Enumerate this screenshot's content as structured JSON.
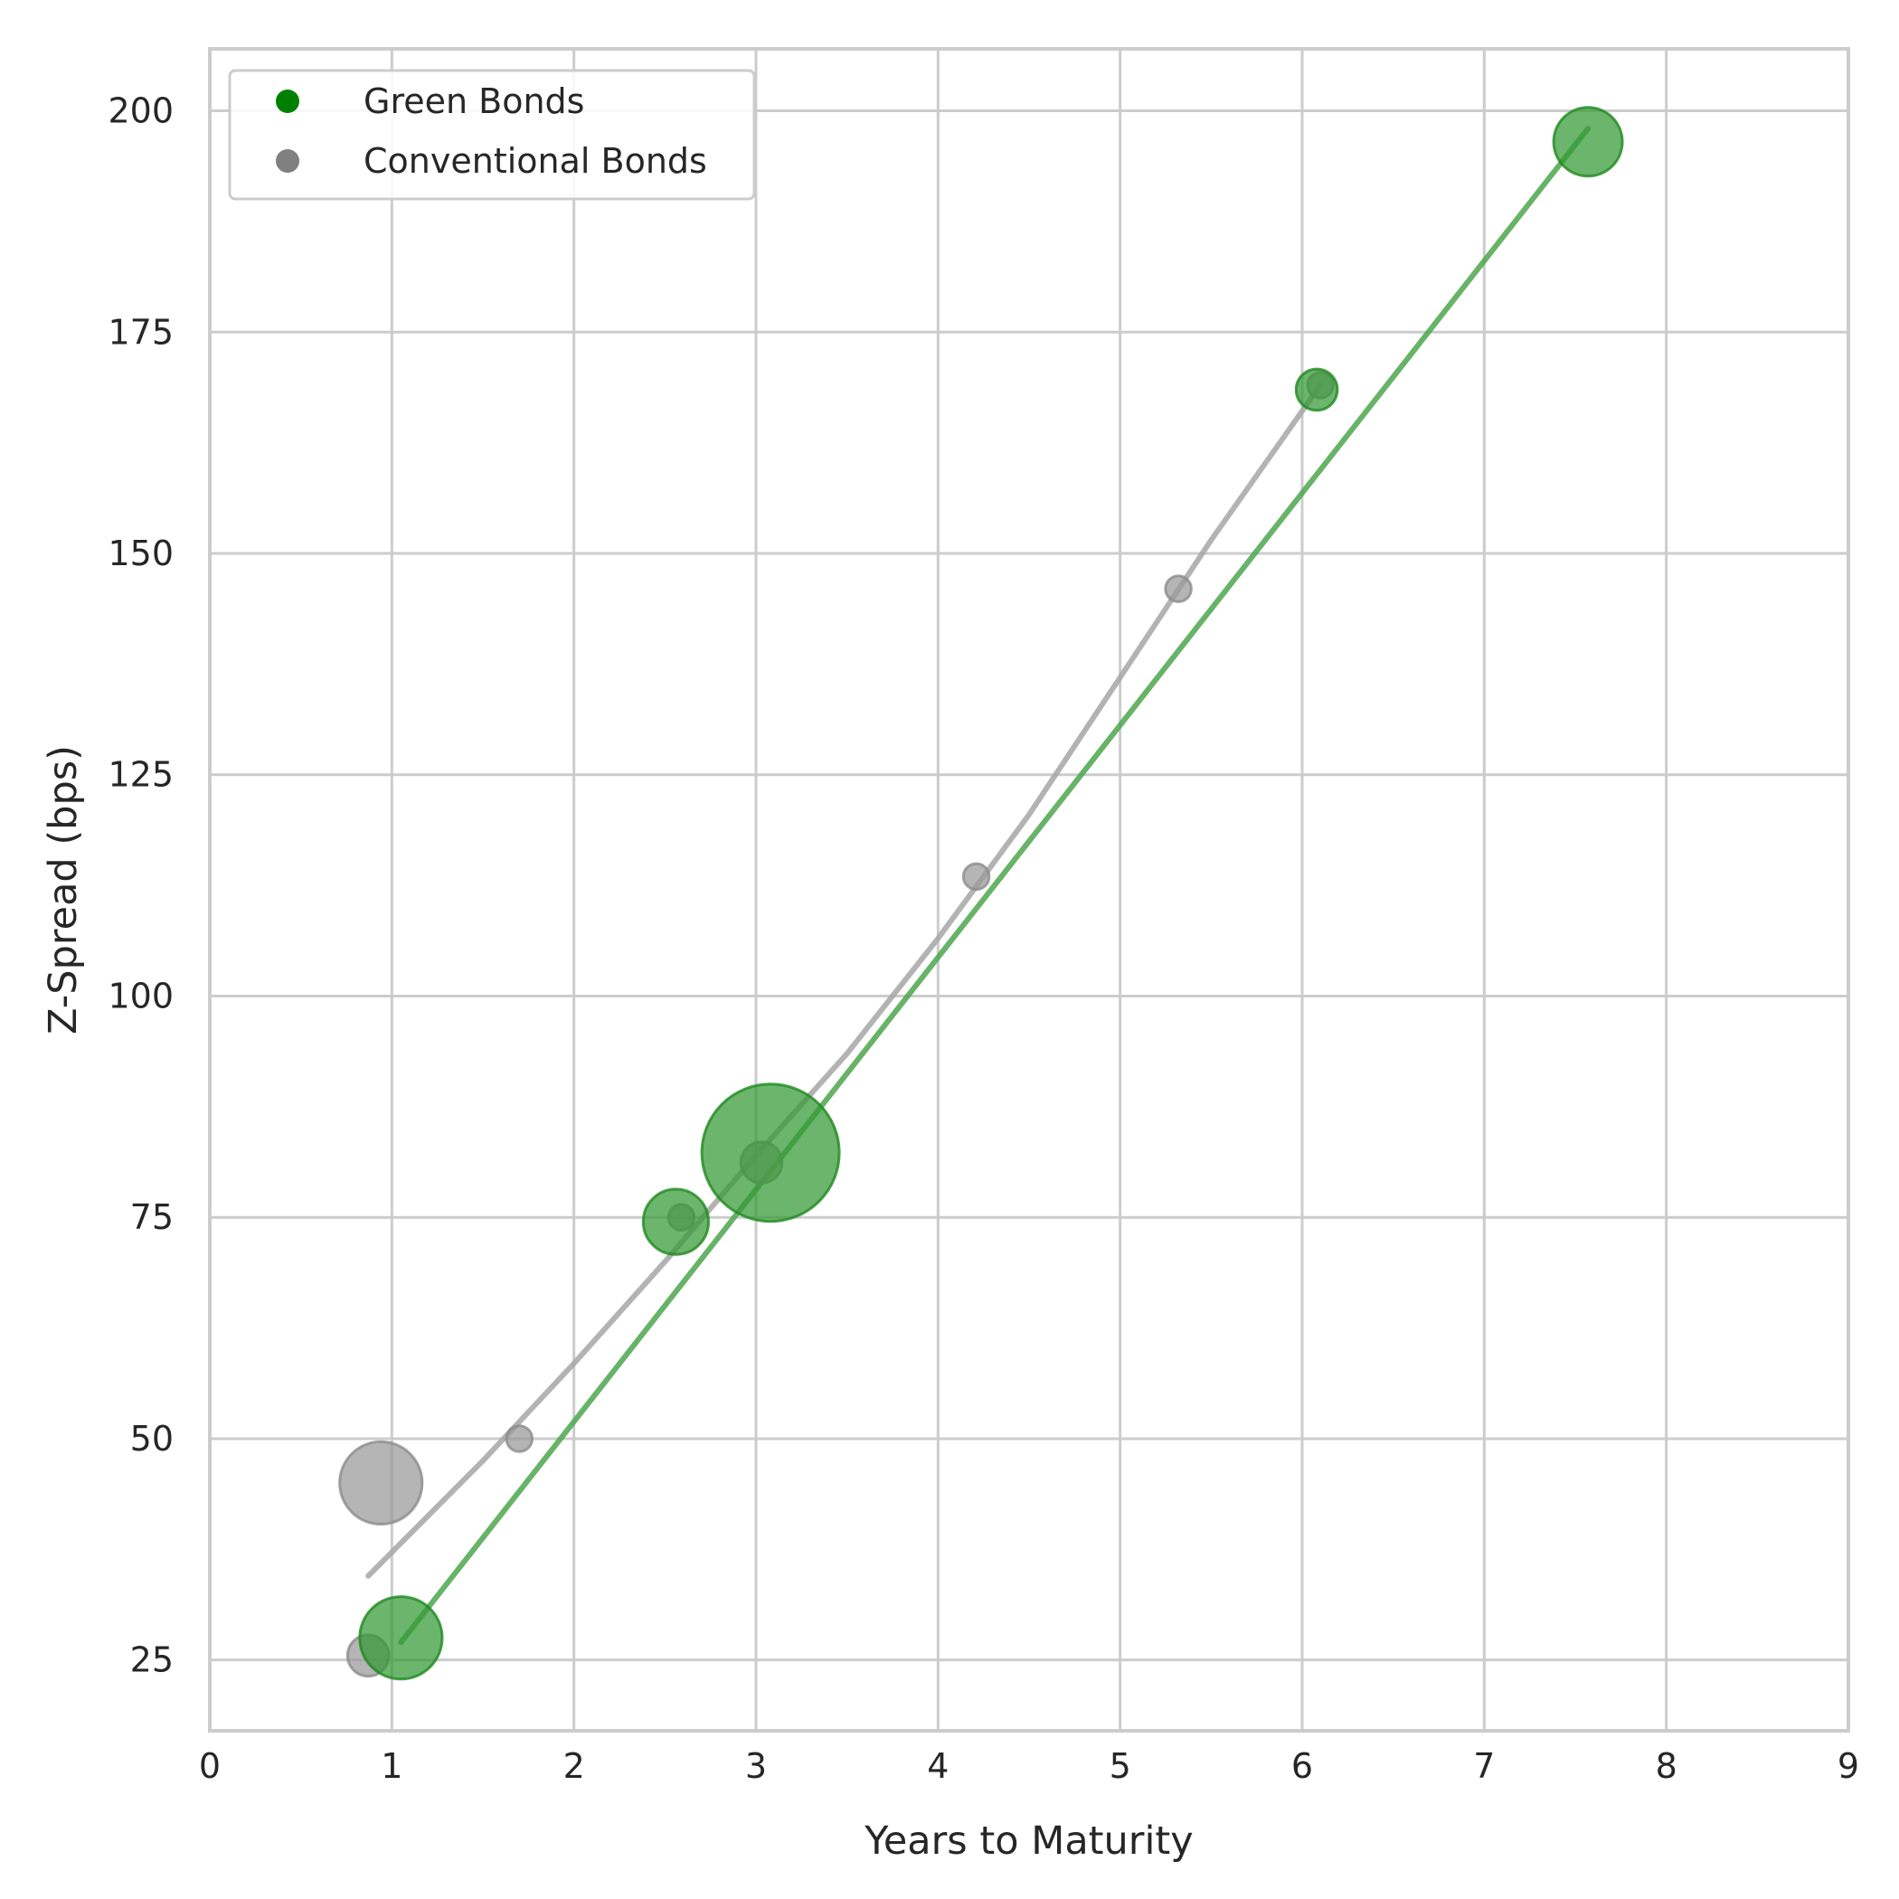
{
  "chart_data": {
    "type": "scatter",
    "xlabel": "Years to Maturity",
    "ylabel": "Z-Spread (bps)",
    "xlim": [
      0,
      9
    ],
    "ylim": [
      17,
      207
    ],
    "xticks": [
      0,
      1,
      2,
      3,
      4,
      5,
      6,
      7,
      8,
      9
    ],
    "yticks": [
      25,
      50,
      75,
      100,
      125,
      150,
      175,
      200
    ],
    "grid": true,
    "legend_position": "top-left",
    "point_size_encoding": "relative bubble size (unlabeled)",
    "series": [
      {
        "name": "Green Bonds",
        "color": "#008000",
        "points": [
          {
            "x": 1.05,
            "y": 27.5,
            "size": 48
          },
          {
            "x": 2.56,
            "y": 74.5,
            "size": 38
          },
          {
            "x": 3.08,
            "y": 82.3,
            "size": 80
          },
          {
            "x": 6.08,
            "y": 168.5,
            "size": 24
          },
          {
            "x": 7.57,
            "y": 196.5,
            "size": 40
          }
        ],
        "trend_line": [
          {
            "x": 1.05,
            "y": 27
          },
          {
            "x": 7.57,
            "y": 198
          }
        ]
      },
      {
        "name": "Conventional Bonds",
        "color": "#808080",
        "points": [
          {
            "x": 0.87,
            "y": 25.5,
            "size": 24
          },
          {
            "x": 0.94,
            "y": 45.0,
            "size": 48
          },
          {
            "x": 1.7,
            "y": 50.0,
            "size": 15
          },
          {
            "x": 2.59,
            "y": 75.0,
            "size": 15
          },
          {
            "x": 3.03,
            "y": 81.2,
            "size": 24
          },
          {
            "x": 4.21,
            "y": 113.5,
            "size": 15
          },
          {
            "x": 5.32,
            "y": 146.0,
            "size": 15
          },
          {
            "x": 6.1,
            "y": 169.0,
            "size": 15
          }
        ],
        "trend_line": [
          {
            "x": 0.87,
            "y": 34.5
          },
          {
            "x": 1.5,
            "y": 47.5
          },
          {
            "x": 2.0,
            "y": 58.5
          },
          {
            "x": 2.5,
            "y": 70.0
          },
          {
            "x": 3.0,
            "y": 82.0
          },
          {
            "x": 3.5,
            "y": 93.5
          },
          {
            "x": 4.0,
            "y": 106.5
          },
          {
            "x": 4.5,
            "y": 120.5
          },
          {
            "x": 5.0,
            "y": 136.0
          },
          {
            "x": 5.5,
            "y": 151.5
          },
          {
            "x": 6.1,
            "y": 169.0
          }
        ]
      }
    ]
  }
}
